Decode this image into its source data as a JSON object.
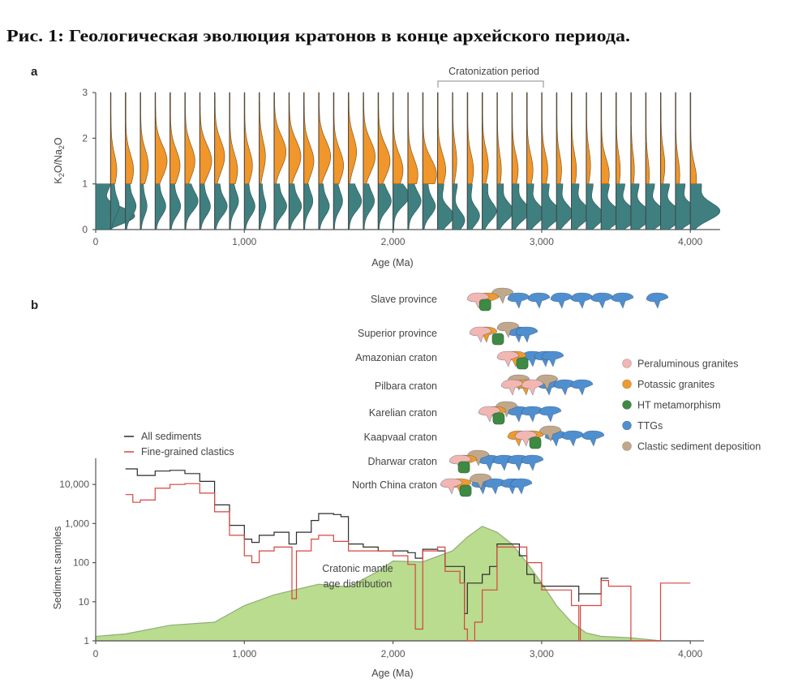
{
  "title": "Рис. 1: Геологическая эволюция кратонов в конце архейского периода.",
  "chart_data": [
    {
      "panel": "a",
      "type": "violin",
      "annotation": "Cratonization period",
      "annotation_range": [
        2300,
        3000
      ],
      "xlabel": "Age (Ma)",
      "ylabel": "K2O/Na2O",
      "xlim": [
        0,
        4200
      ],
      "ylim": [
        0,
        3
      ],
      "xticks": [
        "0",
        "1,000",
        "2,000",
        "3,000",
        "4,000"
      ],
      "xtick_values": [
        0,
        1000,
        2000,
        3000,
        4000
      ],
      "yticks": [
        "0",
        "1",
        "2",
        "3"
      ],
      "bin_step": 100,
      "split_value": 1,
      "colors": {
        "low": "#3f7f80",
        "high": "#f0962a"
      },
      "low_ratio_mode": [
        0.3,
        0.5,
        0.5,
        0.5,
        0.5,
        0.5,
        0.6,
        0.5,
        0.5,
        0.6,
        0.5,
        0.5,
        0.5,
        0.5,
        0.6,
        0.5,
        0.6,
        0.6,
        0.6,
        0.6,
        0.7,
        0.6,
        0.5,
        0.3,
        0.2,
        0.3,
        0.4,
        0.4,
        0.4,
        0.35,
        0.35,
        0.35,
        0.35,
        0.3,
        0.3,
        0.3,
        0.3,
        0.3,
        0.3,
        0.35,
        0.4
      ],
      "low_ratio_density": [
        1.0,
        0.2,
        0.25,
        0.15,
        0.25,
        0.25,
        0.3,
        0.25,
        0.3,
        0.2,
        0.25,
        0.15,
        0.3,
        0.3,
        0.2,
        0.25,
        0.2,
        0.3,
        0.25,
        0.3,
        0.35,
        0.3,
        0.3,
        0.4,
        0.3,
        0.3,
        0.35,
        0.4,
        0.45,
        0.45,
        0.5,
        0.4,
        0.5,
        0.45,
        0.55,
        0.6,
        0.55,
        0.6,
        0.6,
        0.65,
        0.75
      ],
      "high_ratio_mode": [
        0,
        1.3,
        1.3,
        1.4,
        1.5,
        1.4,
        1.5,
        1.5,
        1.6,
        1.3,
        1.4,
        1.6,
        1.7,
        1.6,
        1.5,
        1.6,
        1.4,
        1.7,
        1.6,
        1.5,
        1.3,
        1.2,
        1.2,
        1.3,
        1.5,
        1.3,
        1.4,
        1.3,
        1.3,
        1.3,
        1.3,
        1.3,
        1.3,
        1.4,
        1.2,
        1.3,
        1.3,
        1.2,
        1.4,
        1.2,
        1.1
      ],
      "high_ratio_density": [
        0,
        0.15,
        0.2,
        0.2,
        0.3,
        0.25,
        0.25,
        0.3,
        0.25,
        0.2,
        0.2,
        0.15,
        0.3,
        0.3,
        0.25,
        0.3,
        0.25,
        0.2,
        0.3,
        0.3,
        0.25,
        0.25,
        0.35,
        0.2,
        0.1,
        0.15,
        0.15,
        0.1,
        0.15,
        0.15,
        0.15,
        0.12,
        0.12,
        0.1,
        0.2,
        0.1,
        0.08,
        0.08,
        0.1,
        0.1,
        0.15
      ]
    },
    {
      "panel": "b",
      "type": "line",
      "xlabel": "Age (Ma)",
      "ylabel": "Sediment samples",
      "xlim": [
        0,
        4200
      ],
      "ylim": [
        1,
        40000
      ],
      "yscale": "log",
      "xticks": [
        "0",
        "1,000",
        "2,000",
        "3,000",
        "4,000"
      ],
      "xtick_values": [
        0,
        1000,
        2000,
        3000,
        4000
      ],
      "yticks": [
        "1",
        "10",
        "100",
        "1,000",
        "10,000"
      ],
      "ytick_values": [
        1,
        10,
        100,
        1000,
        10000
      ],
      "legend_position": "top-left",
      "series": [
        {
          "name": "All sediments",
          "color": "#2b2b2b",
          "x": [
            200,
            280,
            400,
            500,
            600,
            700,
            800,
            900,
            1000,
            1050,
            1100,
            1200,
            1300,
            1350,
            1450,
            1500,
            1600,
            1650,
            1700,
            1800,
            1900,
            2000,
            2100,
            2150,
            2200,
            2300,
            2350,
            2450,
            2480,
            2500,
            2600,
            2650,
            2700,
            2800,
            2850,
            2900,
            2950,
            3000,
            3200,
            3250,
            3250,
            3400,
            3400,
            3450
          ],
          "y": [
            25000,
            17000,
            22000,
            23000,
            19000,
            12000,
            3000,
            900,
            400,
            330,
            500,
            600,
            300,
            600,
            1200,
            1800,
            1700,
            1500,
            300,
            250,
            200,
            200,
            180,
            130,
            220,
            200,
            80,
            80,
            5,
            30,
            50,
            80,
            300,
            300,
            150,
            50,
            30,
            25,
            25,
            10,
            16,
            16,
            40,
            40
          ]
        },
        {
          "name": "Fine-grained clastics",
          "color": "#d6453d",
          "x": [
            200,
            250,
            300,
            400,
            500,
            600,
            700,
            800,
            900,
            1000,
            1050,
            1100,
            1200,
            1300,
            1320,
            1350,
            1450,
            1500,
            1600,
            1700,
            1800,
            2000,
            2100,
            2150,
            2200,
            2300,
            2350,
            2450,
            2480,
            2500,
            2550,
            2600,
            2700,
            2800,
            2900,
            3000,
            3150,
            3200,
            3250,
            3260,
            3400,
            3400,
            3450,
            3600,
            3600,
            3800,
            3800,
            4000
          ],
          "y": [
            5500,
            3500,
            4000,
            8000,
            10000,
            10500,
            6000,
            2000,
            500,
            150,
            100,
            200,
            250,
            250,
            12,
            200,
            400,
            500,
            350,
            200,
            200,
            150,
            90,
            2,
            200,
            250,
            60,
            30,
            2,
            1,
            3,
            20,
            250,
            250,
            100,
            20,
            20,
            8,
            1,
            8,
            8,
            35,
            25,
            25,
            1,
            1,
            30,
            30
          ]
        }
      ],
      "area": {
        "label_line1": "Cratonic mantle",
        "label_line2": "age distribution",
        "color": "#b9dc8f",
        "x": [
          0,
          200,
          500,
          800,
          1000,
          1200,
          1500,
          1700,
          1900,
          2000,
          2200,
          2400,
          2500,
          2600,
          2700,
          2800,
          2900,
          3000,
          3100,
          3200,
          3300,
          3400,
          3600,
          3800,
          4000
        ],
        "y": [
          1.3,
          1.5,
          2.5,
          3,
          8,
          15,
          28,
          24,
          60,
          110,
          105,
          200,
          450,
          850,
          600,
          300,
          100,
          30,
          8,
          3,
          1.6,
          1.3,
          1.2,
          1,
          1
        ]
      },
      "craton_timeline": {
        "rows": [
          {
            "name": "Slave province",
            "events": [
              [
                "peraluminous",
                2570
              ],
              [
                "metamorphism",
                2620
              ],
              [
                "potassic",
                2635
              ],
              [
                "clastic",
                2733
              ],
              [
                "ttg",
                2842
              ],
              [
                "ttg",
                2979
              ],
              [
                "ttg",
                3131
              ],
              [
                "ttg",
                3268
              ],
              [
                "ttg",
                3404
              ],
              [
                "ttg",
                3541
              ],
              [
                "ttg",
                3775
              ]
            ]
          },
          {
            "name": "Superior province",
            "events": [
              [
                "potassic",
                2624
              ],
              [
                "peraluminous",
                2586
              ],
              [
                "clastic",
                2771
              ],
              [
                "ttg",
                2842
              ],
              [
                "ttg",
                2897
              ],
              [
                "metamorphism",
                2706
              ]
            ]
          },
          {
            "name": "Amazonian craton",
            "events": [
              [
                "potassic",
                2820
              ],
              [
                "peraluminous",
                2771
              ],
              [
                "ttg",
                2935
              ],
              [
                "ttg",
                3022
              ],
              [
                "ttg",
                3071
              ],
              [
                "metamorphism",
                2870
              ]
            ]
          },
          {
            "name": "Pilbara craton",
            "events": [
              [
                "peraluminous",
                2799
              ],
              [
                "clastic",
                2842
              ],
              [
                "orange_placeholder",
                0
              ],
              [
                "potassic",
                2891
              ],
              [
                "peraluminous",
                2935
              ],
              [
                "clastic",
                3033
              ],
              [
                "ttg",
                3045
              ],
              [
                "ttg",
                3153
              ],
              [
                "ttg",
                3268
              ]
            ]
          },
          {
            "name": "Karelian craton",
            "events": [
              [
                "peraluminous",
                2646
              ],
              [
                "potassic",
                2684
              ],
              [
                "clastic",
                2760
              ],
              [
                "ttg",
                2842
              ],
              [
                "ttg",
                2935
              ],
              [
                "ttg",
                3055
              ],
              [
                "metamorphism",
                2711
              ]
            ]
          },
          {
            "name": "Kaapvaal craton",
            "events": [
              [
                "potassic",
                2842
              ],
              [
                "potassic",
                2935
              ],
              [
                "clastic",
                3055
              ],
              [
                "ttg",
                3093
              ],
              [
                "ttg",
                3208
              ],
              [
                "ttg",
                3344
              ],
              [
                "peraluminous",
                2891
              ],
              [
                "metamorphism",
                2957
              ]
            ]
          },
          {
            "name": "Dharwar craton",
            "events": [
              [
                "potassic",
                2488
              ],
              [
                "peraluminous",
                2450
              ],
              [
                "clastic",
                2570
              ],
              [
                "ttg",
                2646
              ],
              [
                "ttg",
                2744
              ],
              [
                "ttg",
                2842
              ],
              [
                "ttg",
                2935
              ],
              [
                "metamorphism",
                2477
              ]
            ]
          },
          {
            "name": "North China craton",
            "events": [
              [
                "peraluminous",
                2390
              ],
              [
                "potassic",
                2450
              ],
              [
                "clastic",
                2586
              ],
              [
                "ttg",
                2600
              ],
              [
                "ttg",
                2684
              ],
              [
                "ttg",
                2799
              ],
              [
                "ttg",
                2859
              ],
              [
                "metamorphism",
                2488
              ]
            ]
          }
        ],
        "legend": [
          {
            "key": "peraluminous",
            "label": "Peraluminous granites",
            "color": "#f2b6b3"
          },
          {
            "key": "potassic",
            "label": "Potassic granites",
            "color": "#ef9a2e"
          },
          {
            "key": "metamorphism",
            "label": "HT metamorphism",
            "color": "#3e8a45"
          },
          {
            "key": "ttg",
            "label": "TTGs",
            "color": "#4f8fcf"
          },
          {
            "key": "clastic",
            "label": "Clastic sediment deposition",
            "color": "#c2a88a"
          }
        ]
      }
    }
  ]
}
